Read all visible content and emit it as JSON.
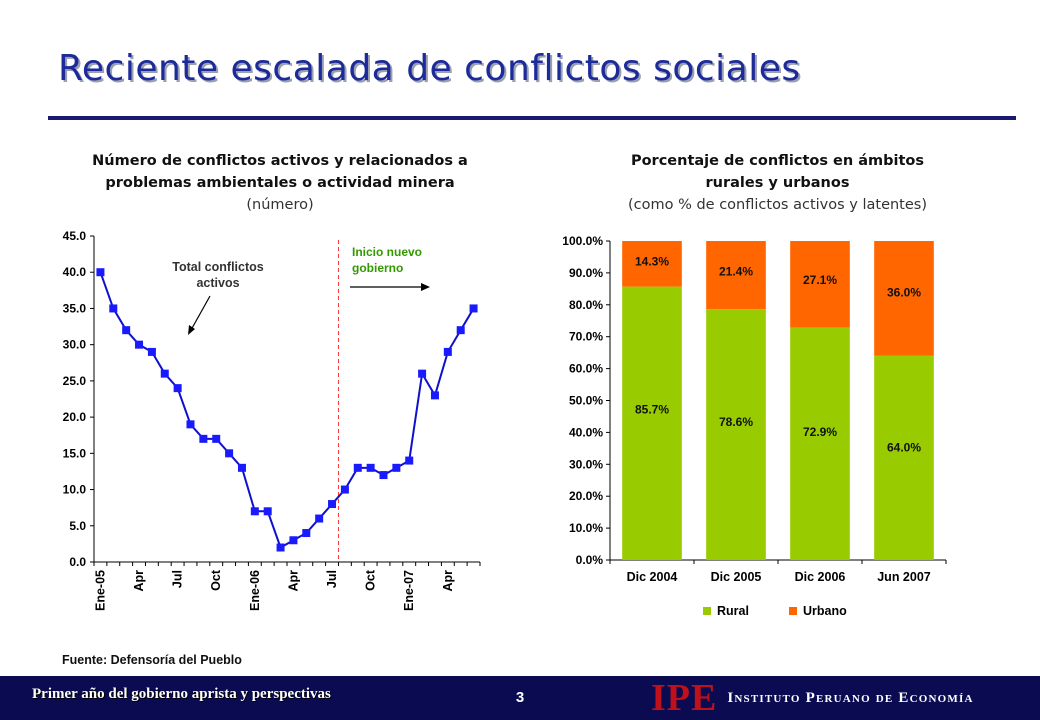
{
  "slide": {
    "title": "Reciente escalada de conflictos sociales",
    "source": "Fuente: Defensoría del Pueblo",
    "footer_left": "Primer año del gobierno aprista y perspectivas",
    "page_number": "3",
    "logo_mark": "IPE",
    "logo_name": "Instituto Peruano de Economía"
  },
  "colors": {
    "title": "#1c2a9a",
    "line": "#1010cc",
    "marker": "#1a1aff",
    "rural": "#99cc00",
    "urbano": "#ff6600",
    "divider": "#ff3333",
    "annotation_green": "#339900",
    "footer_bg": "#0b0b52",
    "logo_red": "#c0101a"
  },
  "left_chart_titles": {
    "line1": "Número de conflictos activos y relacionados a",
    "line2": "problemas ambientales o actividad minera",
    "unit": "(número)"
  },
  "right_chart_titles": {
    "line1": "Porcentaje de conflictos en ámbitos",
    "line2": "rurales y urbanos",
    "unit": "(como % de conflictos activos y latentes)"
  },
  "chart_data": [
    {
      "type": "line",
      "ylim": [
        0,
        45
      ],
      "yticks": [
        "0.0",
        "5.0",
        "10.0",
        "15.0",
        "20.0",
        "25.0",
        "30.0",
        "35.0",
        "40.0",
        "45.0"
      ],
      "x_labels": [
        "Ene-05",
        "Apr",
        "Jul",
        "Oct",
        "Ene-06",
        "Apr",
        "Jul",
        "Oct",
        "Ene-07",
        "Apr"
      ],
      "x_label_positions": [
        0,
        3,
        6,
        9,
        12,
        15,
        18,
        21,
        24,
        27
      ],
      "n_points": 30,
      "values": [
        40,
        35,
        32,
        30,
        29,
        26,
        24,
        19,
        17,
        17,
        15,
        13,
        7,
        7,
        2,
        3,
        4,
        6,
        8,
        10,
        13,
        13,
        12,
        13,
        14,
        26,
        23,
        29,
        32,
        35
      ],
      "divider_after_index": 18.5,
      "annotations": {
        "total": "Total conflictos activos",
        "new_gov_line1": "Inicio nuevo",
        "new_gov_line2": "gobierno"
      },
      "grid": false
    },
    {
      "type": "bar",
      "stacked": true,
      "percent": true,
      "categories": [
        "Dic 2004",
        "Dic 2005",
        "Dic 2006",
        "Jun 2007"
      ],
      "ylim": [
        0,
        100
      ],
      "yticks": [
        "0.0%",
        "10.0%",
        "20.0%",
        "30.0%",
        "40.0%",
        "50.0%",
        "60.0%",
        "70.0%",
        "80.0%",
        "90.0%",
        "100.0%"
      ],
      "series": [
        {
          "name": "Rural",
          "values": [
            85.7,
            78.6,
            72.9,
            64.0
          ],
          "labels": [
            "85.7%",
            "78.6%",
            "72.9%",
            "64.0%"
          ]
        },
        {
          "name": "Urbano",
          "values": [
            14.3,
            21.4,
            27.1,
            36.0
          ],
          "labels": [
            "14.3%",
            "21.4%",
            "27.1%",
            "36.0%"
          ]
        }
      ],
      "legend_position": "bottom",
      "grid": false
    }
  ]
}
